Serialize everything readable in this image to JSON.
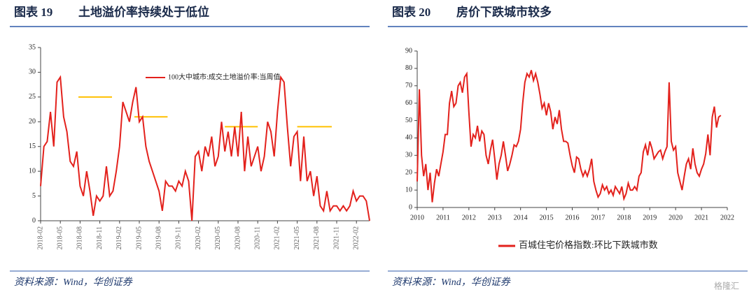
{
  "chart_data": [
    {
      "type": "line",
      "figure": "图表 19",
      "title": "土地溢价率持续处于低位",
      "source": "资料来源：Wind，华创证券",
      "categories": [
        "2018-02",
        null,
        null,
        null,
        null,
        null,
        "2018-05",
        null,
        null,
        null,
        null,
        null,
        "2018-08",
        null,
        null,
        null,
        null,
        null,
        "2018-11",
        null,
        null,
        null,
        null,
        null,
        "2019-02",
        null,
        null,
        null,
        null,
        null,
        "2019-05",
        null,
        null,
        null,
        null,
        null,
        "2019-08",
        null,
        null,
        null,
        null,
        null,
        "2019-11",
        null,
        null,
        null,
        null,
        null,
        "2020-02",
        null,
        null,
        null,
        null,
        null,
        "2020-05",
        null,
        null,
        null,
        null,
        null,
        "2020-08",
        null,
        null,
        null,
        null,
        null,
        "2020-11",
        null,
        null,
        null,
        null,
        null,
        "2021-02",
        null,
        null,
        null,
        null,
        null,
        "2021-05",
        null,
        null,
        null,
        null,
        null,
        "2021-08",
        null,
        null,
        null,
        null,
        null,
        "2021-11",
        null,
        null,
        null,
        null,
        null,
        "2022-02",
        null,
        null,
        null,
        null
      ],
      "series": [
        {
          "name": "100大中城市:成交土地溢价率:当周值",
          "color": "#e3211c",
          "values": [
            7,
            15,
            16,
            22,
            15,
            28,
            29,
            21,
            18,
            12,
            11,
            14,
            7,
            5,
            10,
            6,
            1,
            5,
            4,
            5,
            11,
            5,
            6,
            10,
            15,
            24,
            22,
            20,
            24,
            27,
            20,
            21,
            15,
            12,
            10,
            8,
            6,
            2,
            8,
            7,
            7,
            6,
            8,
            7,
            10,
            8,
            0,
            13,
            14,
            10,
            15,
            13,
            17,
            11,
            13,
            20,
            14,
            18,
            13,
            19,
            13,
            22,
            10,
            17,
            11,
            13,
            15,
            10,
            13,
            20,
            18,
            13,
            22,
            29,
            28,
            19,
            11,
            17,
            18,
            8,
            17,
            8,
            10,
            5,
            9,
            3,
            2,
            6,
            2,
            3,
            3,
            2,
            3,
            2,
            3,
            6,
            4,
            5,
            5,
            4,
            0
          ]
        }
      ],
      "reference_lines": [
        {
          "value": 25,
          "span": [
            11.5,
            21.7
          ]
        },
        {
          "value": 21,
          "span": [
            28.5,
            38.6
          ]
        },
        {
          "value": 19,
          "span": [
            56,
            66
          ]
        },
        {
          "value": 19,
          "span": [
            78,
            88.5
          ]
        }
      ],
      "reference_color": "#ffc000",
      "ylim": [
        0,
        35
      ],
      "yticks": [
        0,
        5,
        10,
        15,
        20,
        25,
        30,
        35
      ],
      "x_label_rotation": 90,
      "legend": "upper center"
    },
    {
      "type": "line",
      "figure": "图表 20",
      "title": "房价下跌城市较多",
      "source": "资料来源：Wind，华创证券",
      "categories": [
        "2010",
        null,
        null,
        null,
        null,
        null,
        null,
        null,
        null,
        null,
        null,
        null,
        "2011",
        null,
        null,
        null,
        null,
        null,
        null,
        null,
        null,
        null,
        null,
        null,
        "2012",
        null,
        null,
        null,
        null,
        null,
        null,
        null,
        null,
        null,
        null,
        null,
        "2013",
        null,
        null,
        null,
        null,
        null,
        null,
        null,
        null,
        null,
        null,
        null,
        "2014",
        null,
        null,
        null,
        null,
        null,
        null,
        null,
        null,
        null,
        null,
        null,
        "2015",
        null,
        null,
        null,
        null,
        null,
        null,
        null,
        null,
        null,
        null,
        null,
        "2016",
        null,
        null,
        null,
        null,
        null,
        null,
        null,
        null,
        null,
        null,
        null,
        "2017",
        null,
        null,
        null,
        null,
        null,
        null,
        null,
        null,
        null,
        null,
        null,
        "2018",
        null,
        null,
        null,
        null,
        null,
        null,
        null,
        null,
        null,
        null,
        null,
        "2019",
        null,
        null,
        null,
        null,
        null,
        null,
        null,
        null,
        null,
        null,
        null,
        "2020",
        null,
        null,
        null,
        null,
        null,
        null,
        null,
        null,
        null,
        null,
        null,
        "2021",
        null,
        null,
        null,
        null,
        null,
        null,
        null,
        null,
        null,
        null,
        null,
        "2022"
      ],
      "series": [
        {
          "name": "百城住宅价格指数:环比下跌城市数",
          "color": "#e3211c",
          "values": [
            15,
            68,
            30,
            18,
            25,
            10,
            20,
            3,
            14,
            22,
            18,
            25,
            32,
            42,
            42,
            60,
            67,
            58,
            60,
            70,
            72,
            66,
            75,
            77,
            55,
            35,
            42,
            40,
            47,
            38,
            44,
            42,
            30,
            25,
            33,
            39,
            28,
            16,
            25,
            30,
            38,
            30,
            21,
            25,
            30,
            36,
            35,
            38,
            45,
            60,
            72,
            77,
            75,
            79,
            73,
            77,
            72,
            65,
            57,
            60,
            53,
            60,
            55,
            45,
            52,
            48,
            56,
            45,
            38,
            38,
            37,
            30,
            24,
            20,
            29,
            28,
            22,
            18,
            21,
            18,
            22,
            28,
            15,
            10,
            6,
            8,
            13,
            10,
            12,
            8,
            10,
            7,
            12,
            10,
            8,
            12,
            5,
            8,
            14,
            10,
            10,
            12,
            10,
            18,
            20,
            32,
            36,
            30,
            38,
            34,
            28,
            30,
            32,
            33,
            28,
            32,
            35,
            72,
            38,
            33,
            35,
            20,
            15,
            10,
            18,
            25,
            28,
            22,
            34,
            25,
            20,
            18,
            22,
            25,
            31,
            42,
            30,
            52,
            58,
            46,
            52,
            53,
            null,
            null,
            null
          ]
        }
      ],
      "ylim": [
        0,
        90
      ],
      "yticks": [
        0,
        10,
        20,
        30,
        40,
        50,
        60,
        70,
        80,
        90
      ],
      "x_label_rotation": 0,
      "legend": "lower center"
    }
  ],
  "watermark": "格隆汇"
}
